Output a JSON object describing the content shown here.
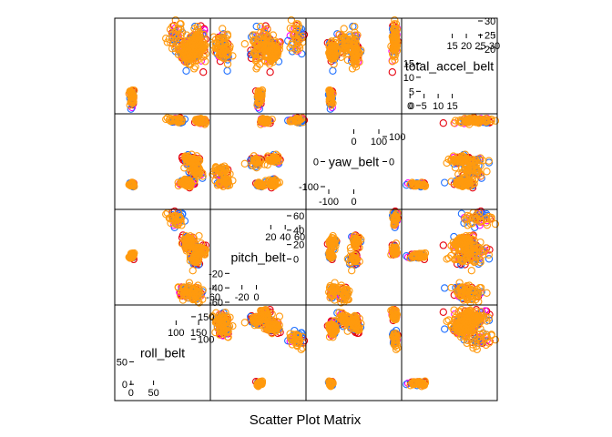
{
  "chart_data": {
    "type": "scatter",
    "subtype": "scatter-plot-matrix",
    "title": "",
    "xlabel": "Scatter Plot Matrix",
    "ylabel": "",
    "variables": [
      {
        "name": "roll_belt",
        "range": [
          -30,
          170
        ],
        "ticks_low": [
          0,
          50
        ],
        "ticks_high": [
          100,
          150
        ]
      },
      {
        "name": "pitch_belt",
        "range": [
          -60,
          65
        ],
        "ticks_low": [
          -60,
          -20,
          0
        ],
        "ticks_high": [
          20,
          40,
          60
        ],
        "ticks_low_side": [
          -60,
          -40,
          -20
        ],
        "ticks_high_side": [
          0,
          20,
          40,
          60
        ]
      },
      {
        "name": "yaw_belt",
        "range": [
          -180,
          180
        ],
        "ticks_low": [
          -100,
          0
        ],
        "ticks_high": [
          0,
          100
        ]
      },
      {
        "name": "total_accel_belt",
        "range": [
          -2,
          30
        ],
        "ticks_low": [
          0,
          5,
          10,
          15
        ],
        "ticks_high": [
          15,
          20,
          25,
          30
        ],
        "ticks_low_side": [
          0,
          5,
          10,
          15
        ],
        "ticks_high_side": [
          20,
          25,
          30
        ]
      }
    ],
    "groups": [
      {
        "color": "#e6020e"
      },
      {
        "color": "#ff00ff"
      },
      {
        "color": "#1e6fff"
      },
      {
        "color": "#ff9a0e"
      }
    ],
    "clusters": [
      {
        "roll": 125,
        "pitch": 22,
        "yaw": -85,
        "accel": 20,
        "spread": [
          6,
          4,
          8,
          2
        ]
      },
      {
        "roll": 128,
        "pitch": 24,
        "yaw": 10,
        "accel": 19,
        "spread": [
          6,
          4,
          8,
          2
        ]
      },
      {
        "roll": 155,
        "pitch": 12,
        "yaw": 160,
        "accel": 22,
        "spread": [
          6,
          3,
          6,
          3
        ]
      },
      {
        "roll": 120,
        "pitch": -45,
        "yaw": -85,
        "accel": 18,
        "spread": [
          8,
          4,
          6,
          2
        ]
      },
      {
        "roll": 140,
        "pitch": 0,
        "yaw": 0,
        "accel": 20,
        "spread": [
          5,
          4,
          10,
          3
        ]
      },
      {
        "roll": 2,
        "pitch": 5,
        "yaw": -92,
        "accel": 3,
        "spread": [
          3,
          2,
          4,
          1.5
        ]
      },
      {
        "roll": 100,
        "pitch": 56,
        "yaw": 164,
        "accel": 25,
        "spread": [
          10,
          5,
          6,
          3
        ]
      },
      {
        "roll": 142,
        "pitch": -48,
        "yaw": -40,
        "accel": 22,
        "spread": [
          8,
          5,
          10,
          2
        ]
      }
    ]
  }
}
